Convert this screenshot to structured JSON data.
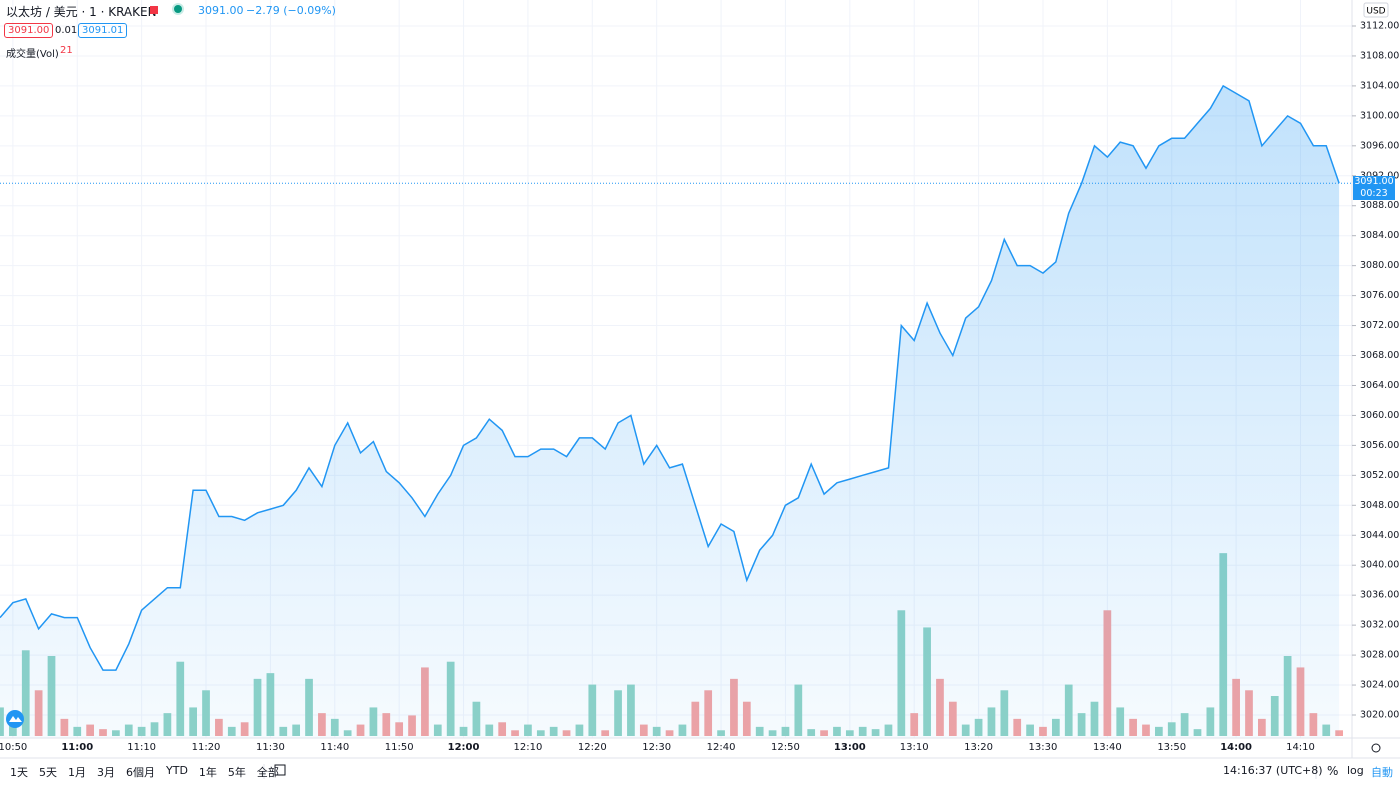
{
  "header": {
    "symbol": "以太坊 / 美元 · 1 · KRAKEN",
    "last": "3091.00",
    "change": "−2.79 (−0.09%)",
    "bid": "3091.00",
    "spread": "0.01",
    "ask": "3091.01",
    "volume_label": "成交量(Vol)",
    "volume_value": "21",
    "currency": "USD"
  },
  "price_tag": {
    "price": "3091.00",
    "countdown": "00:23"
  },
  "toolbar": {
    "ranges": [
      "1天",
      "5天",
      "1月",
      "3月",
      "6個月",
      "YTD",
      "1年",
      "5年",
      "全部"
    ],
    "clock": "14:16:37 (UTC+8)",
    "percent": "%",
    "log": "log",
    "auto": "自動"
  },
  "chart_data": {
    "type": "area",
    "x": [
      "10:48",
      "10:50",
      "10:52",
      "10:54",
      "10:56",
      "10:58",
      "11:00",
      "11:02",
      "11:04",
      "11:06",
      "11:08",
      "11:10",
      "11:12",
      "11:14",
      "11:16",
      "11:18",
      "11:20",
      "11:22",
      "11:24",
      "11:26",
      "11:28",
      "11:30",
      "11:32",
      "11:34",
      "11:36",
      "11:38",
      "11:40",
      "11:42",
      "11:44",
      "11:46",
      "11:48",
      "11:50",
      "11:52",
      "11:54",
      "11:56",
      "11:58",
      "12:00",
      "12:02",
      "12:04",
      "12:06",
      "12:08",
      "12:10",
      "12:12",
      "12:14",
      "12:16",
      "12:18",
      "12:20",
      "12:22",
      "12:24",
      "12:26",
      "12:28",
      "12:30",
      "12:32",
      "12:34",
      "12:36",
      "12:38",
      "12:40",
      "12:42",
      "12:44",
      "12:46",
      "12:48",
      "12:50",
      "12:52",
      "12:54",
      "12:56",
      "12:58",
      "13:00",
      "13:02",
      "13:04",
      "13:06",
      "13:08",
      "13:10",
      "13:12",
      "13:14",
      "13:16",
      "13:18",
      "13:20",
      "13:22",
      "13:24",
      "13:26",
      "13:28",
      "13:30",
      "13:32",
      "13:34",
      "13:36",
      "13:38",
      "13:40",
      "13:42",
      "13:44",
      "13:46",
      "13:48",
      "13:50",
      "13:52",
      "13:54",
      "13:56",
      "13:58",
      "14:00",
      "14:02",
      "14:04",
      "14:06",
      "14:08",
      "14:10",
      "14:12",
      "14:14",
      "14:16"
    ],
    "series": [
      {
        "name": "price",
        "color": "#2196f3",
        "values": [
          3033,
          3035,
          3035.5,
          3031.5,
          3033.5,
          3033,
          3033,
          3029,
          3026,
          3026,
          3029.5,
          3034,
          3035.5,
          3037,
          3037,
          3050,
          3050,
          3046.5,
          3046.5,
          3046,
          3047,
          3047.5,
          3048,
          3050,
          3053,
          3050.5,
          3056,
          3059,
          3055,
          3056.5,
          3052.5,
          3051,
          3049,
          3046.5,
          3049.5,
          3052,
          3056,
          3057,
          3059.5,
          3058,
          3054.5,
          3054.5,
          3055.5,
          3055.5,
          3054.5,
          3057,
          3057,
          3055.5,
          3059,
          3060,
          3053.5,
          3056,
          3053,
          3053.5,
          3048,
          3042.5,
          3045.5,
          3044.5,
          3038,
          3042,
          3044,
          3048,
          3049,
          3053.5,
          3049.5,
          3051,
          3051.5,
          3052,
          3052.5,
          3053,
          3072,
          3070,
          3075,
          3071,
          3068,
          3073,
          3074.5,
          3078,
          3083.5,
          3080,
          3080,
          3079,
          3080.5,
          3087,
          3091,
          3096,
          3094.5,
          3096.5,
          3096,
          3093,
          3096,
          3097,
          3097,
          3099,
          3101,
          3104,
          3103,
          3102,
          3096,
          3098,
          3100,
          3099,
          3096,
          3096,
          3091
        ]
      },
      {
        "name": "volume",
        "up_color": "#8fd3c6",
        "down_color": "#f4a3a3",
        "values": [
          25,
          10,
          75,
          40,
          70,
          15,
          8,
          10,
          6,
          5,
          10,
          8,
          12,
          20,
          65,
          25,
          40,
          15,
          8,
          12,
          50,
          55,
          8,
          10,
          50,
          20,
          15,
          5,
          10,
          25,
          20,
          12,
          18,
          60,
          10,
          65,
          8,
          30,
          10,
          12,
          5,
          10,
          5,
          8,
          5,
          10,
          45,
          5,
          40,
          45,
          10,
          8,
          5,
          10,
          30,
          40,
          5,
          50,
          30,
          8,
          5,
          8,
          45,
          6,
          5,
          8,
          5,
          8,
          6,
          10,
          110,
          20,
          95,
          50,
          30,
          10,
          15,
          25,
          40,
          15,
          10,
          8,
          15,
          45,
          20,
          30,
          110,
          25,
          15,
          10,
          8,
          12,
          20,
          6,
          25,
          160,
          50,
          40,
          15,
          35,
          70,
          60,
          20,
          10,
          5
        ]
      }
    ],
    "xlim": [
      "10:48",
      "14:18"
    ],
    "xticks": [
      "10:50",
      "11:00",
      "11:10",
      "11:20",
      "11:30",
      "11:40",
      "11:50",
      "12:00",
      "12:10",
      "12:20",
      "12:30",
      "12:40",
      "12:50",
      "13:00",
      "13:10",
      "13:20",
      "13:30",
      "13:40",
      "13:50",
      "14:00",
      "14:10"
    ],
    "major_xticks": [
      "11:00",
      "12:00",
      "13:00",
      "14:00"
    ],
    "ylim": [
      3016.93,
      3115.47
    ],
    "yticks": [
      {
        "value": 3020,
        "label": "3020.00"
      },
      {
        "value": 3024,
        "label": "3024.00"
      },
      {
        "value": 3028,
        "label": "3028.00"
      },
      {
        "value": 3032,
        "label": "3032.00"
      },
      {
        "value": 3036,
        "label": "3036.00"
      },
      {
        "value": 3040,
        "label": "3040.00"
      },
      {
        "value": 3044,
        "label": "3044.00"
      },
      {
        "value": 3048,
        "label": "3048.00"
      },
      {
        "value": 3052,
        "label": "3052.00"
      },
      {
        "value": 3056,
        "label": "3056.00"
      },
      {
        "value": 3060,
        "label": "3060.00"
      },
      {
        "value": 3064,
        "label": "3064.00"
      },
      {
        "value": 3068,
        "label": "3068.00"
      },
      {
        "value": 3072,
        "label": "3072.00"
      },
      {
        "value": 3076,
        "label": "3076.00"
      },
      {
        "value": 3080,
        "label": "3080.00"
      },
      {
        "value": 3084,
        "label": "3084.00"
      },
      {
        "value": 3088,
        "label": "3088.00"
      },
      {
        "value": 3092,
        "label": "3092.00"
      },
      {
        "value": 3096,
        "label": "3096.00"
      },
      {
        "value": 3100,
        "label": "3100.00"
      },
      {
        "value": 3104,
        "label": "3104.00"
      },
      {
        "value": 3108,
        "label": "3108.00"
      },
      {
        "value": 3112,
        "label": "3112.00"
      }
    ],
    "volume_lim": [
      0,
      175
    ],
    "last_price": 3091,
    "grid": true
  }
}
